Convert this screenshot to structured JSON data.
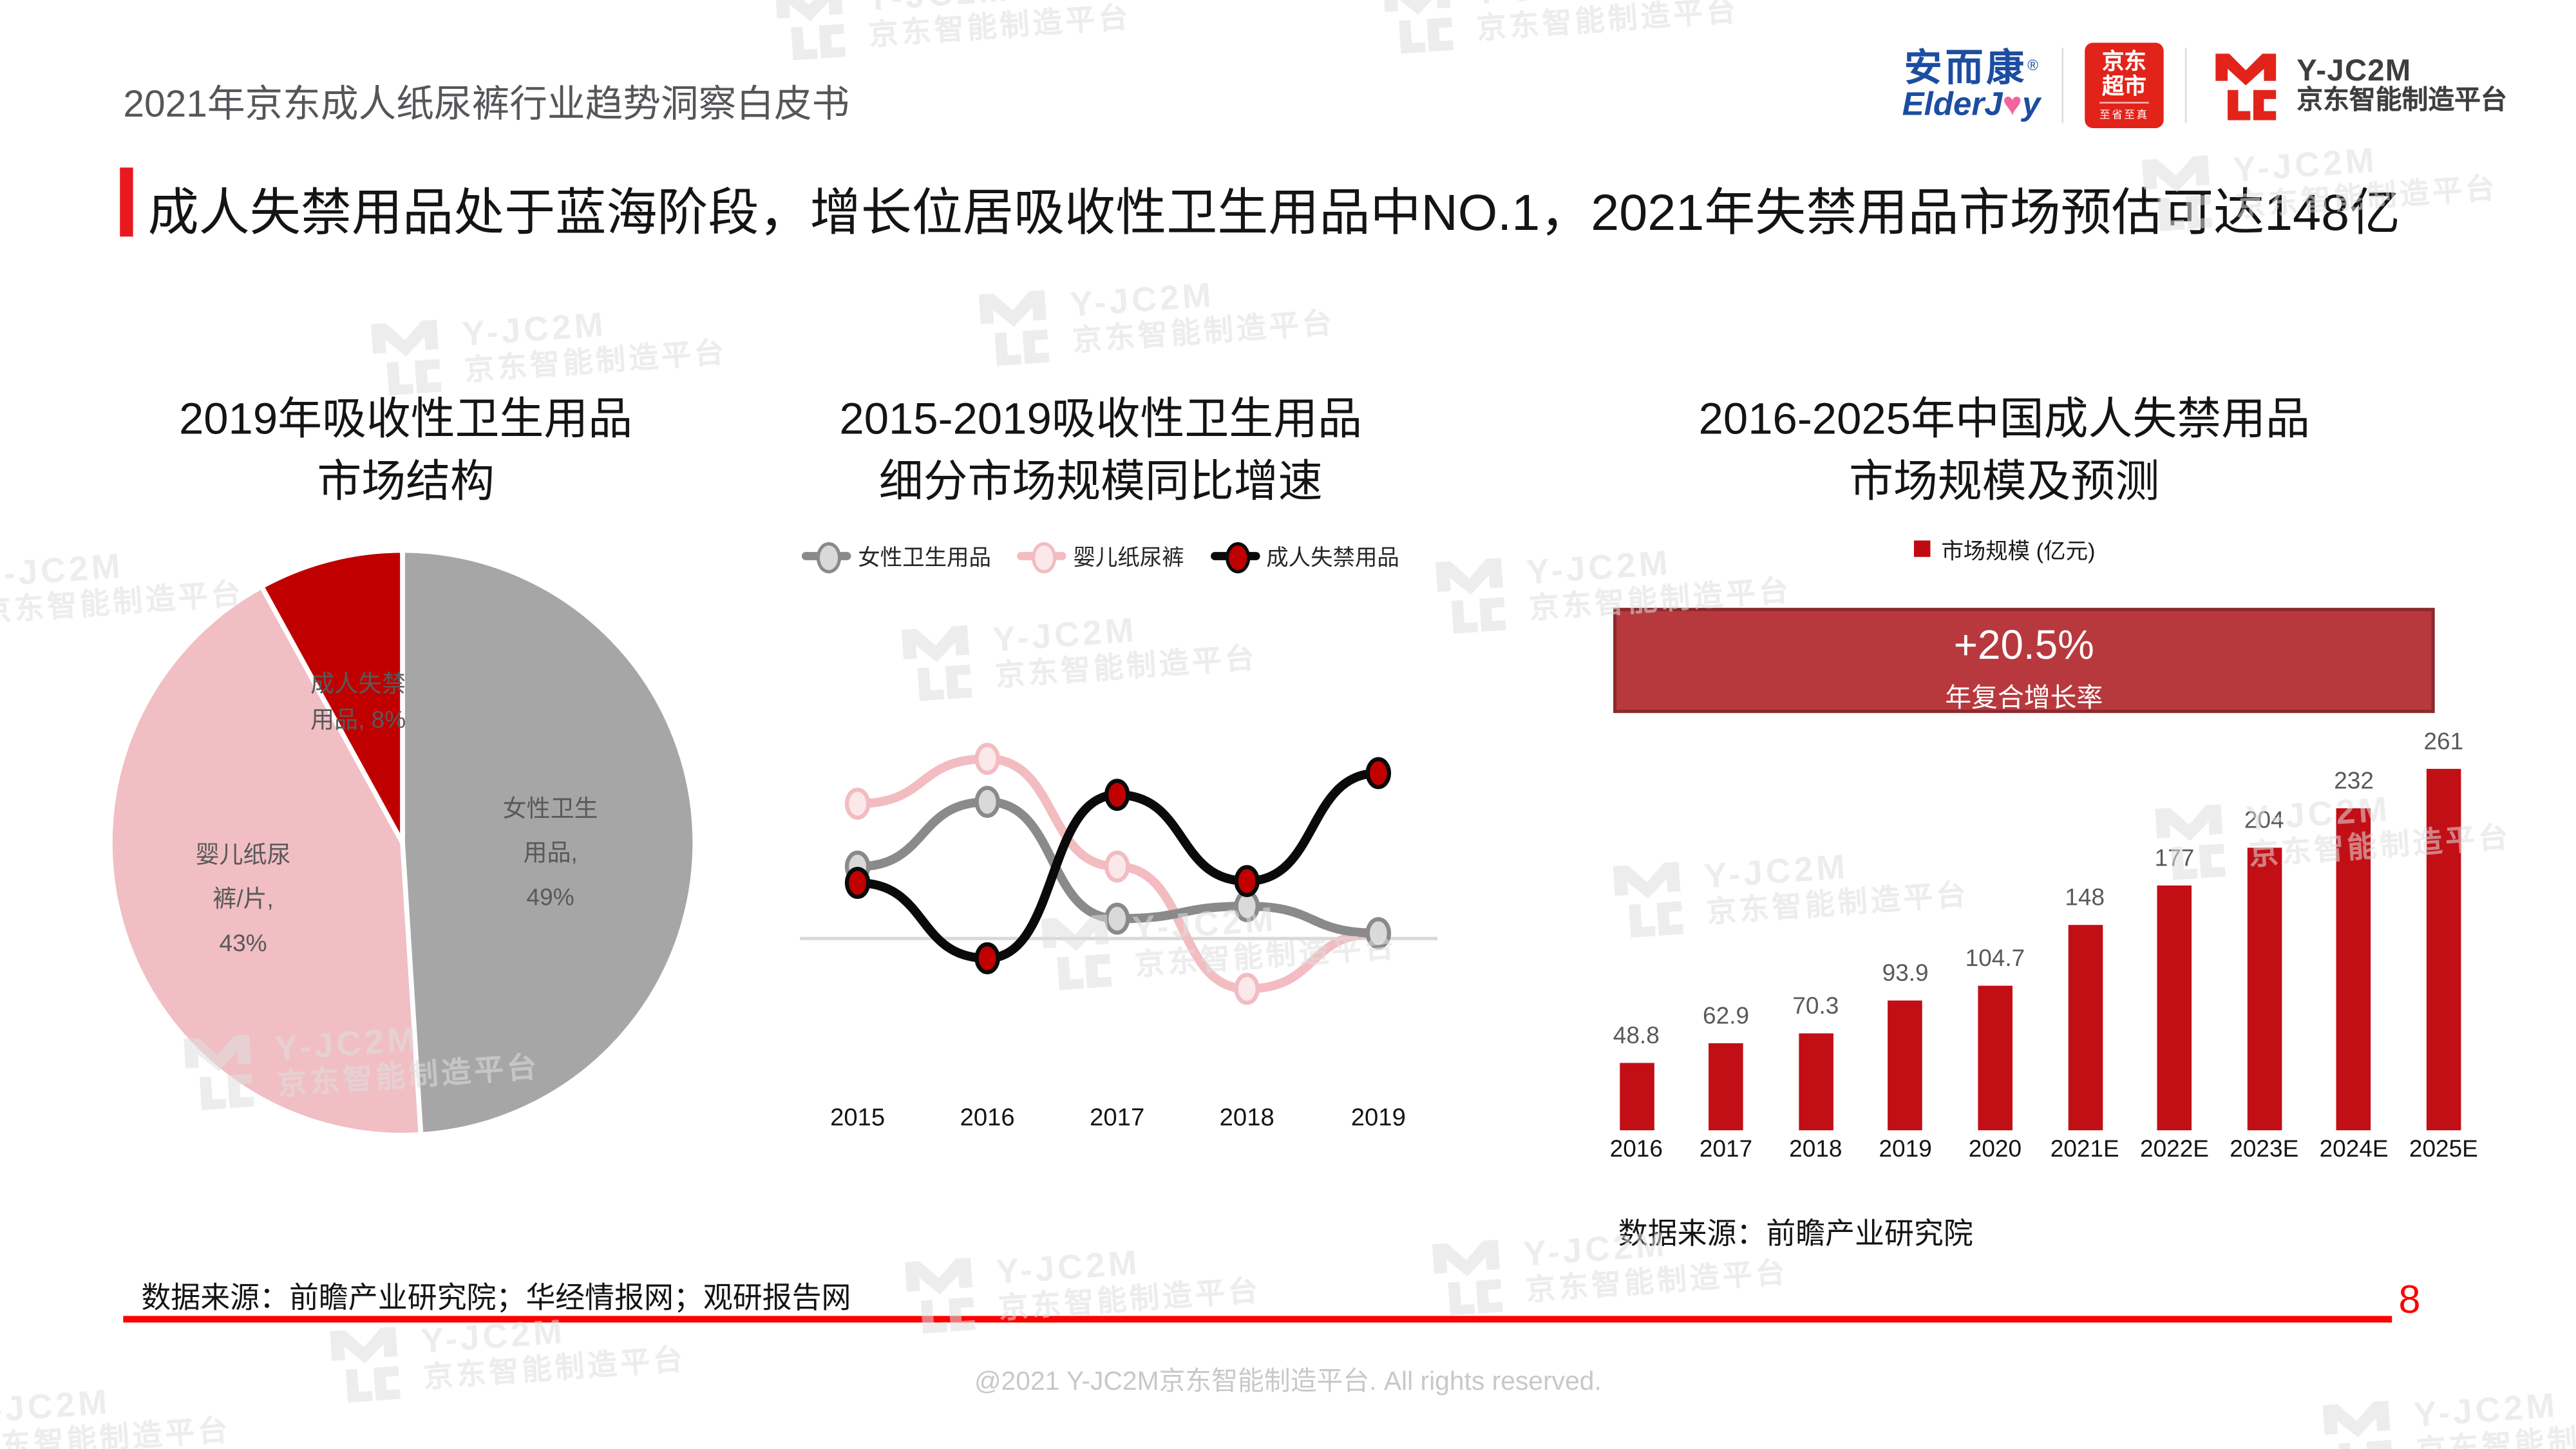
{
  "page": {
    "header_title": "2021年京东成人纸尿裤行业趋势洞察白皮书",
    "headline": "成人失禁用品处于蓝海阶段，增长位居吸收性卫生用品中NO.1，2021年失禁用品市场预估可达148亿",
    "footer_source": "数据来源：前瞻产业研究院；华经情报网；观研报告网",
    "copyright": "@2021 Y-JC2M京东智能制造平台. All rights reserved.",
    "page_number": "8"
  },
  "logos": {
    "elderjoy": {
      "cn": "安而康",
      "reg": "®",
      "en_prefix": "ElderJ",
      "en_heart": "♥",
      "en_suffix": "y"
    },
    "jd_supermarket": {
      "line1": "京东",
      "line2": "超市",
      "tagline": "至省至真"
    },
    "yjc2m": {
      "name": "Y-JC2M",
      "subtitle": "京东智能制造平台"
    }
  },
  "watermark": {
    "brand": "Y-JC2M",
    "subtitle": "京东智能制造平台"
  },
  "chart_data": [
    {
      "type": "pie",
      "title_lines": [
        "2019年吸收性卫生用品",
        "市场结构"
      ],
      "slices": [
        {
          "name": "女性卫生用品",
          "value": 49,
          "color": "#A6A6A6",
          "label_lines": [
            "女性卫生",
            "用品,",
            "49%"
          ]
        },
        {
          "name": "婴儿纸尿裤/片",
          "value": 43,
          "color": "#F0BEC3",
          "label_lines": [
            "婴儿纸尿",
            "裤/片,",
            "43%"
          ]
        },
        {
          "name": "成人失禁用品",
          "value": 8,
          "color": "#C00000",
          "label_lines": [
            "成人失禁",
            "用品, 8%"
          ]
        }
      ],
      "start_angle": "top",
      "direction": "clockwise",
      "separator_color": "#FFFFFF"
    },
    {
      "type": "line",
      "title_lines": [
        "2015-2019吸收性卫生用品",
        "细分市场规模同比增速"
      ],
      "x": [
        "2015",
        "2016",
        "2017",
        "2018",
        "2019"
      ],
      "series": [
        {
          "name": "女性卫生用品",
          "color": "#8A8A8A",
          "marker_fill": "#D9D9D9",
          "values": [
            4.0,
            7.6,
            1.1,
            1.8,
            0.3
          ]
        },
        {
          "name": "婴儿纸尿裤",
          "color": "#F2BCC1",
          "marker_fill": "#FBE8EA",
          "values": [
            7.5,
            10.0,
            4.0,
            -2.8,
            0.3
          ]
        },
        {
          "name": "成人失禁用品",
          "color": "#0A0A0A",
          "marker_fill": "#C00000",
          "values": [
            3.1,
            -1.1,
            8.0,
            3.2,
            9.2
          ]
        }
      ],
      "ylim": [
        -4,
        12
      ],
      "baseline_value": 0,
      "y_axis_note": "y-axis unlabeled in source; values estimated from plot (growth rate, %)"
    },
    {
      "type": "bar",
      "title_lines": [
        "2016-2025年中国成人失禁用品",
        "市场规模及预测"
      ],
      "legend": "市场规模 (亿元)",
      "badge": {
        "value": "+20.5%",
        "label": "年复合增长率"
      },
      "categories": [
        "2016",
        "2017",
        "2018",
        "2019",
        "2020",
        "2021E",
        "2022E",
        "2023E",
        "2024E",
        "2025E"
      ],
      "values": [
        48.8,
        62.9,
        70.3,
        93.9,
        104.7,
        148,
        177,
        204,
        232,
        261
      ],
      "bar_color": "#C20E15",
      "ylim": [
        0,
        280
      ],
      "source": "数据来源：前瞻产业研究院"
    }
  ]
}
